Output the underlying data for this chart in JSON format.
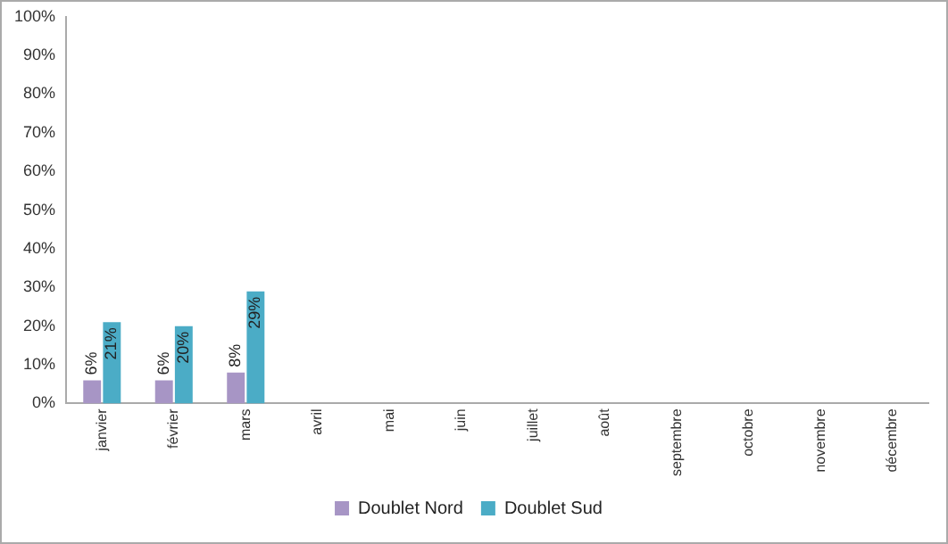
{
  "chart_data": {
    "type": "bar",
    "categories": [
      "janvier",
      "février",
      "mars",
      "avril",
      "mai",
      "juin",
      "juillet",
      "août",
      "septembre",
      "octobre",
      "novembre",
      "décembre"
    ],
    "series": [
      {
        "name": "Doublet Nord",
        "color": "#a795c5",
        "values": [
          6,
          6,
          8,
          null,
          null,
          null,
          null,
          null,
          null,
          null,
          null,
          null
        ],
        "value_labels": [
          "6%",
          "6%",
          "8%",
          null,
          null,
          null,
          null,
          null,
          null,
          null,
          null,
          null
        ]
      },
      {
        "name": "Doublet Sud",
        "color": "#4bacc6",
        "values": [
          21,
          20,
          29,
          null,
          null,
          null,
          null,
          null,
          null,
          null,
          null,
          null
        ],
        "value_labels": [
          "21%",
          "20%",
          "29%",
          null,
          null,
          null,
          null,
          null,
          null,
          null,
          null,
          null
        ]
      }
    ],
    "ylim": [
      0,
      100
    ],
    "yticks": [
      {
        "value": 0,
        "label": "0%"
      },
      {
        "value": 10,
        "label": "10%"
      },
      {
        "value": 20,
        "label": "20%"
      },
      {
        "value": 30,
        "label": "30%"
      },
      {
        "value": 40,
        "label": "40%"
      },
      {
        "value": 50,
        "label": "50%"
      },
      {
        "value": 60,
        "label": "60%"
      },
      {
        "value": 70,
        "label": "70%"
      },
      {
        "value": 80,
        "label": "80%"
      },
      {
        "value": 90,
        "label": "90%"
      },
      {
        "value": 100,
        "label": "100%"
      }
    ],
    "grid": false,
    "legend": "bottom"
  }
}
